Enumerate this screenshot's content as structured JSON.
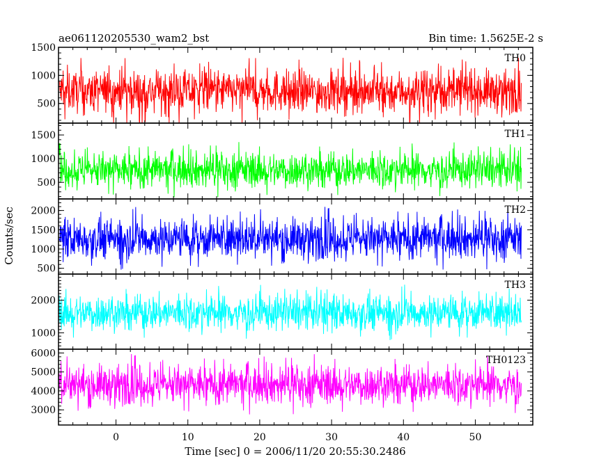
{
  "header": {
    "title": "ae061120205530_wam2_bst",
    "bin_time": "Bin time: 1.5625E-2 s"
  },
  "chart_data": {
    "type": "line",
    "xlabel": "Time [sec] 0 = 2006/11/20 20:55:30.2486",
    "ylabel": "Counts/sec",
    "xlim": [
      -8,
      58
    ],
    "x_ticks": [
      0,
      10,
      20,
      30,
      40,
      50
    ],
    "x_tick_labels": [
      "0",
      "10",
      "20",
      "30",
      "40",
      "50"
    ],
    "data_x_range": [
      -7.9,
      56.4
    ],
    "grid": false,
    "panels": [
      {
        "name": "TH0",
        "color": "#ff0000",
        "ylim": [
          150,
          1500
        ],
        "y_ticks": [
          500,
          1000,
          1500
        ],
        "y_tick_labels": [
          "500",
          "1000",
          "1500"
        ],
        "mean": 720,
        "spread": 330
      },
      {
        "name": "TH1",
        "color": "#00ff00",
        "ylim": [
          150,
          1750
        ],
        "y_ticks": [
          500,
          1000,
          1500
        ],
        "y_tick_labels": [
          "500",
          "1000",
          "1500"
        ],
        "mean": 760,
        "spread": 330
      },
      {
        "name": "TH2",
        "color": "#0000ff",
        "ylim": [
          350,
          2300
        ],
        "y_ticks": [
          500,
          1000,
          1500,
          2000
        ],
        "y_tick_labels": [
          "500",
          "1000",
          "1500",
          "2000"
        ],
        "mean": 1270,
        "spread": 460
      },
      {
        "name": "TH3",
        "color": "#00ffff",
        "ylim": [
          500,
          2800
        ],
        "y_ticks": [
          1000,
          2000
        ],
        "y_tick_labels": [
          "1000",
          "2000"
        ],
        "mean": 1620,
        "spread": 480
      },
      {
        "name": "TH0123",
        "color": "#ff00ff",
        "ylim": [
          2200,
          6200
        ],
        "y_ticks": [
          3000,
          4000,
          5000,
          6000
        ],
        "y_tick_labels": [
          "3000",
          "4000",
          "5000",
          "6000"
        ],
        "mean": 4330,
        "spread": 900
      }
    ]
  }
}
